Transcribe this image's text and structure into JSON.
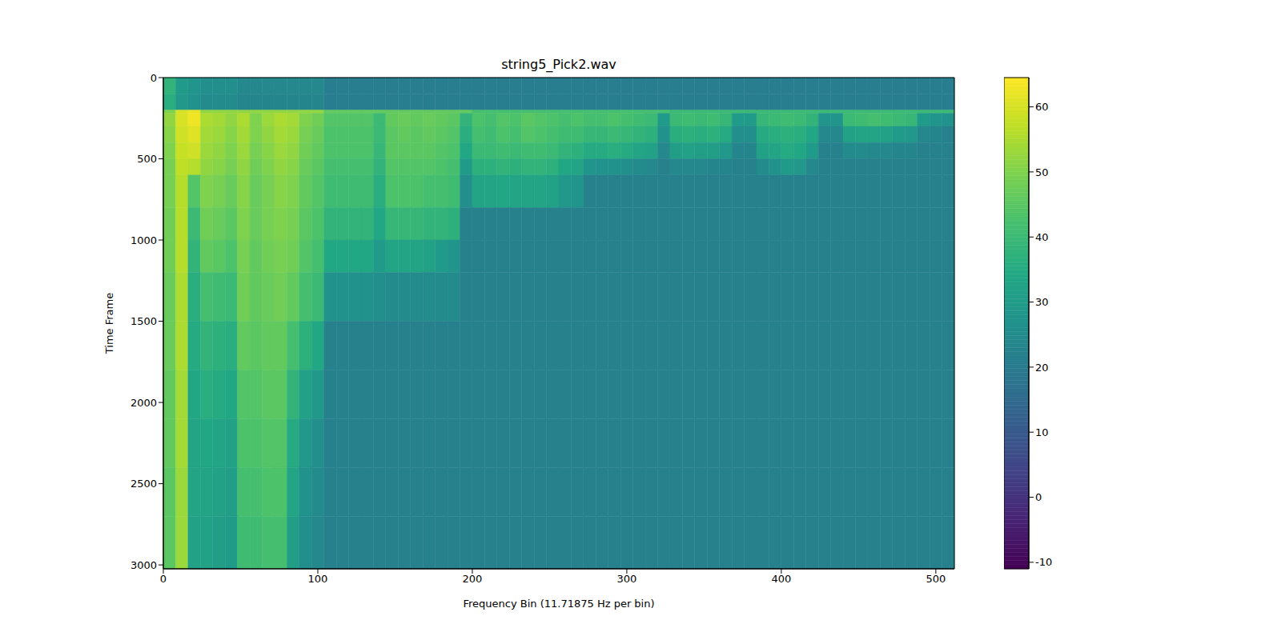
{
  "chart_data": {
    "type": "heatmap",
    "title": "string5_Pick2.wav",
    "x_label": "Frequency Bin (11.71875 Hz per bin)",
    "y_label": "Time Frame",
    "xlim": [
      0,
      512
    ],
    "ylim": [
      3024,
      0
    ],
    "xticks": [
      0,
      100,
      200,
      300,
      400,
      500
    ],
    "yticks": [
      0,
      500,
      1000,
      1500,
      2000,
      2500,
      3000
    ],
    "x_edges": [
      0,
      8,
      16,
      24,
      32,
      40,
      48,
      56,
      64,
      72,
      80,
      88,
      96,
      104,
      112,
      120,
      128,
      136,
      144,
      152,
      160,
      168,
      176,
      184,
      192,
      200,
      208,
      216,
      224,
      232,
      240,
      248,
      256,
      264,
      272,
      280,
      288,
      296,
      304,
      312,
      320,
      328,
      336,
      344,
      352,
      360,
      368,
      376,
      384,
      392,
      400,
      408,
      416,
      424,
      432,
      440,
      448,
      456,
      464,
      472,
      480,
      488,
      496,
      504,
      512
    ],
    "y_edges": [
      0,
      100,
      200,
      220,
      300,
      400,
      500,
      600,
      800,
      1000,
      1200,
      1500,
      1800,
      2100,
      2400,
      2700,
      3024
    ],
    "cells": [
      [
        38,
        30,
        28,
        26,
        26,
        26,
        24,
        24,
        24,
        24,
        24,
        24,
        24,
        21,
        21,
        21,
        21,
        21,
        21,
        21,
        21,
        21,
        21,
        21,
        21,
        21,
        21,
        21,
        21,
        21,
        21,
        21,
        21,
        21,
        21,
        21,
        21,
        21,
        21,
        21,
        21,
        21,
        21,
        21,
        21,
        21,
        21,
        21,
        21,
        21,
        21,
        21,
        21,
        21,
        21,
        21,
        21,
        21,
        21,
        21,
        21,
        21,
        21,
        21
      ],
      [
        36,
        29,
        27,
        25,
        25,
        25,
        23,
        23,
        23,
        23,
        23,
        23,
        23,
        21,
        21,
        21,
        21,
        21,
        21,
        21,
        21,
        21,
        21,
        21,
        21,
        21,
        21,
        21,
        21,
        21,
        21,
        21,
        21,
        21,
        21,
        21,
        21,
        21,
        21,
        21,
        21,
        21,
        21,
        21,
        21,
        21,
        21,
        21,
        21,
        21,
        21,
        21,
        21,
        21,
        21,
        21,
        21,
        21,
        21,
        21,
        21,
        21,
        21,
        21
      ],
      [
        50,
        60,
        62,
        52,
        52,
        52,
        52,
        52,
        52,
        52,
        52,
        52,
        52,
        46,
        46,
        46,
        46,
        46,
        46,
        46,
        46,
        46,
        46,
        46,
        46,
        42,
        42,
        42,
        42,
        42,
        42,
        42,
        42,
        42,
        42,
        42,
        42,
        42,
        42,
        42,
        42,
        40,
        40,
        40,
        40,
        40,
        40,
        40,
        40,
        40,
        40,
        40,
        40,
        40,
        40,
        40,
        40,
        40,
        40,
        40,
        40,
        40,
        40,
        40
      ],
      [
        52,
        60,
        63,
        55,
        54,
        52,
        55,
        50,
        53,
        55,
        54,
        50,
        48,
        44,
        44,
        44,
        44,
        40,
        46,
        47,
        46,
        47,
        46,
        45,
        38,
        43,
        42,
        44,
        43,
        45,
        44,
        43,
        42,
        43,
        42,
        42,
        43,
        42,
        41,
        40,
        30,
        40,
        41,
        40,
        41,
        39,
        30,
        30,
        39,
        40,
        41,
        40,
        38,
        28,
        28,
        40,
        41,
        42,
        41,
        40,
        39,
        30,
        28,
        27
      ],
      [
        51,
        59,
        61,
        54,
        53,
        51,
        54,
        50,
        52,
        54,
        53,
        49,
        47,
        43,
        43,
        43,
        43,
        40,
        45,
        46,
        45,
        46,
        45,
        44,
        36,
        42,
        41,
        43,
        42,
        44,
        43,
        42,
        41,
        41,
        39,
        39,
        40,
        39,
        38,
        37,
        27,
        36,
        37,
        36,
        37,
        35,
        26,
        26,
        35,
        36,
        37,
        36,
        34,
        24,
        24,
        32,
        33,
        33,
        32,
        30,
        29,
        24,
        23,
        22
      ],
      [
        50,
        58,
        59,
        53,
        52,
        50,
        53,
        49,
        51,
        53,
        52,
        48,
        46,
        43,
        43,
        43,
        43,
        39,
        45,
        45,
        45,
        45,
        44,
        43,
        34,
        40,
        40,
        41,
        40,
        41,
        41,
        40,
        38,
        37,
        35,
        35,
        36,
        35,
        33,
        32,
        24,
        31,
        32,
        31,
        31,
        29,
        23,
        23,
        32,
        33,
        35,
        34,
        30,
        22,
        22,
        25,
        25,
        24,
        24,
        23,
        23,
        22,
        22,
        22
      ],
      [
        49,
        57,
        56,
        52,
        51,
        49,
        52,
        48,
        50,
        52,
        51,
        47,
        45,
        42,
        42,
        42,
        42,
        38,
        44,
        44,
        44,
        44,
        43,
        42,
        30,
        37,
        37,
        38,
        37,
        38,
        38,
        37,
        34,
        33,
        28,
        27,
        27,
        26,
        25,
        24,
        22,
        24,
        24,
        24,
        23,
        23,
        22,
        22,
        25,
        27,
        30,
        29,
        24,
        22,
        22,
        22,
        22,
        22,
        22,
        22,
        22,
        22,
        22,
        22
      ],
      [
        49,
        56,
        44,
        50,
        49,
        47,
        51,
        47,
        49,
        51,
        50,
        46,
        44,
        41,
        41,
        41,
        41,
        36,
        43,
        43,
        43,
        42,
        42,
        41,
        26,
        33,
        33,
        34,
        33,
        33,
        33,
        32,
        29,
        28,
        22,
        22,
        22,
        22,
        22,
        22,
        22,
        22,
        22,
        22,
        22,
        22,
        22,
        22,
        22,
        22,
        22,
        22,
        22,
        22,
        22,
        22,
        22,
        22,
        22,
        22,
        22,
        22,
        22,
        22
      ],
      [
        48,
        56,
        40,
        48,
        47,
        45,
        50,
        47,
        49,
        50,
        49,
        45,
        43,
        38,
        38,
        38,
        38,
        34,
        39,
        39,
        39,
        38,
        38,
        37,
        22,
        22,
        22,
        22,
        22,
        22,
        22,
        22,
        22,
        22,
        22,
        22,
        22,
        22,
        22,
        22,
        22,
        22,
        22,
        22,
        22,
        22,
        22,
        22,
        22,
        22,
        22,
        22,
        22,
        22,
        22,
        22,
        22,
        22,
        22,
        22,
        22,
        22,
        22,
        22
      ],
      [
        48,
        56,
        38,
        46,
        45,
        43,
        49,
        46,
        48,
        49,
        48,
        44,
        42,
        34,
        34,
        34,
        34,
        30,
        33,
        33,
        33,
        32,
        30,
        28,
        22,
        22,
        22,
        22,
        22,
        22,
        22,
        22,
        22,
        22,
        22,
        22,
        22,
        22,
        22,
        22,
        22,
        22,
        22,
        22,
        22,
        22,
        22,
        22,
        22,
        22,
        22,
        22,
        22,
        22,
        22,
        22,
        22,
        22,
        22,
        22,
        22,
        22,
        22,
        22
      ],
      [
        47,
        55,
        36,
        42,
        41,
        40,
        48,
        46,
        47,
        48,
        46,
        42,
        40,
        27,
        27,
        27,
        27,
        26,
        25,
        25,
        25,
        25,
        25,
        25,
        22,
        22,
        22,
        22,
        22,
        22,
        22,
        22,
        22,
        22,
        22,
        22,
        22,
        22,
        22,
        22,
        22,
        22,
        22,
        22,
        22,
        22,
        22,
        22,
        22,
        22,
        22,
        22,
        22,
        22,
        22,
        22,
        22,
        22,
        22,
        22,
        22,
        22,
        22,
        22
      ],
      [
        47,
        55,
        35,
        38,
        37,
        36,
        46,
        45,
        46,
        46,
        42,
        37,
        34,
        22,
        22,
        22,
        22,
        22,
        22,
        22,
        22,
        22,
        22,
        22,
        22,
        22,
        22,
        22,
        22,
        22,
        22,
        22,
        22,
        22,
        22,
        22,
        22,
        22,
        22,
        22,
        22,
        22,
        22,
        22,
        22,
        22,
        22,
        22,
        22,
        22,
        22,
        22,
        22,
        22,
        22,
        22,
        22,
        22,
        22,
        22,
        22,
        22,
        22,
        22
      ],
      [
        46,
        54,
        34,
        36,
        35,
        34,
        44,
        44,
        45,
        45,
        38,
        32,
        29,
        22,
        22,
        22,
        22,
        22,
        22,
        22,
        22,
        22,
        22,
        22,
        22,
        22,
        22,
        22,
        22,
        22,
        22,
        22,
        22,
        22,
        22,
        22,
        22,
        22,
        22,
        22,
        22,
        22,
        22,
        22,
        22,
        22,
        22,
        22,
        22,
        22,
        22,
        22,
        22,
        22,
        22,
        22,
        22,
        22,
        22,
        22,
        22,
        22,
        22,
        22
      ],
      [
        46,
        54,
        33,
        34,
        33,
        32,
        43,
        43,
        44,
        44,
        35,
        29,
        26,
        22,
        22,
        22,
        22,
        22,
        22,
        22,
        22,
        22,
        22,
        22,
        22,
        22,
        22,
        22,
        22,
        22,
        22,
        22,
        22,
        22,
        22,
        22,
        22,
        22,
        22,
        22,
        22,
        22,
        22,
        22,
        22,
        22,
        22,
        22,
        22,
        22,
        22,
        22,
        22,
        22,
        22,
        22,
        22,
        22,
        22,
        22,
        22,
        22,
        22,
        22
      ],
      [
        45,
        53,
        33,
        33,
        32,
        31,
        42,
        42,
        43,
        43,
        33,
        27,
        25,
        22,
        22,
        22,
        22,
        22,
        22,
        22,
        22,
        22,
        22,
        22,
        22,
        22,
        22,
        22,
        22,
        22,
        22,
        22,
        22,
        22,
        22,
        22,
        22,
        22,
        22,
        22,
        22,
        22,
        22,
        22,
        22,
        22,
        22,
        22,
        22,
        22,
        22,
        22,
        22,
        22,
        22,
        22,
        22,
        22,
        22,
        22,
        22,
        22,
        22,
        22
      ],
      [
        45,
        53,
        32,
        32,
        31,
        30,
        41,
        41,
        42,
        42,
        31,
        26,
        24,
        22,
        22,
        22,
        22,
        22,
        22,
        22,
        22,
        22,
        22,
        22,
        22,
        22,
        22,
        22,
        22,
        22,
        22,
        22,
        22,
        22,
        22,
        22,
        22,
        22,
        22,
        22,
        22,
        22,
        22,
        22,
        22,
        22,
        22,
        22,
        22,
        22,
        22,
        22,
        22,
        22,
        22,
        22,
        22,
        22,
        22,
        22,
        22,
        22,
        22,
        22
      ]
    ],
    "colorbar": {
      "range": [
        -11,
        64.5
      ],
      "ticks": [
        -10,
        0,
        10,
        20,
        30,
        40,
        50,
        60
      ]
    }
  }
}
